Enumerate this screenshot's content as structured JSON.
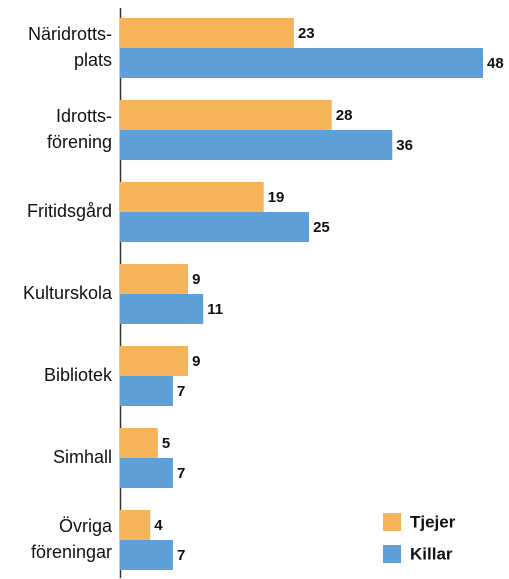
{
  "chart_data": {
    "type": "bar",
    "orientation": "horizontal",
    "categories": [
      "Näridrotts-\nplats",
      "Idrotts-\nförening",
      "Fritidsgård",
      "Kulturskola",
      "Bibliotek",
      "Simhall",
      "Övriga\nföreningar"
    ],
    "series": [
      {
        "name": "Tjejer",
        "color": "#f5b45a",
        "values": [
          23,
          28,
          19,
          9,
          9,
          5,
          4
        ]
      },
      {
        "name": "Killar",
        "color": "#5f9fd8",
        "values": [
          48,
          36,
          25,
          11,
          7,
          7,
          7
        ]
      }
    ],
    "legend": "lower right"
  }
}
